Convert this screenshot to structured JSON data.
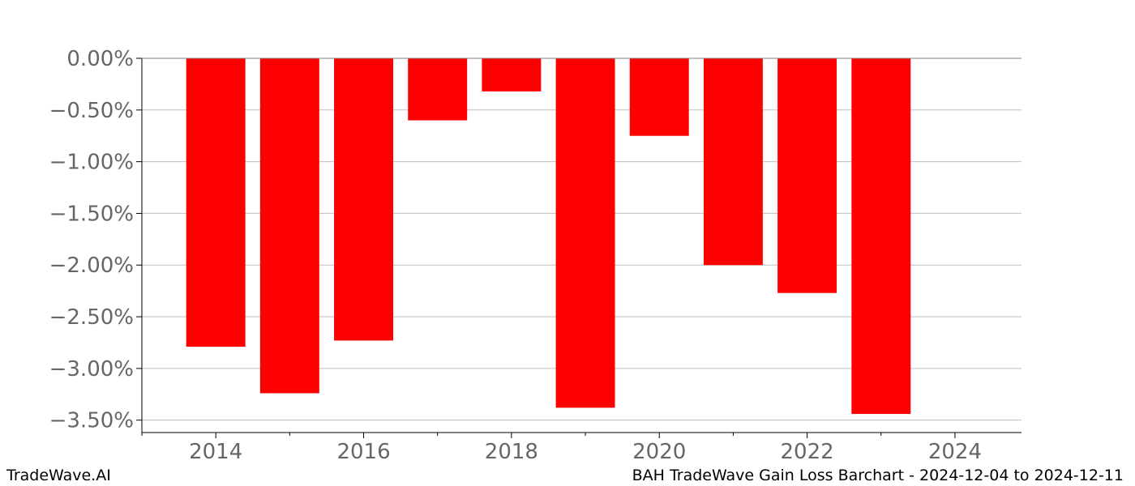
{
  "footer": {
    "brand": "TradeWave.AI",
    "caption": "BAH TradeWave Gain Loss Barchart - 2024-12-04 to 2024-12-11"
  },
  "colors": {
    "bar": "#ff0000",
    "grid": "#bfbfbf",
    "axis": "#000000",
    "tick_text": "#666666"
  },
  "chart_data": {
    "type": "bar",
    "x": [
      2014,
      2015,
      2016,
      2017,
      2018,
      2019,
      2020,
      2021,
      2022,
      2023
    ],
    "values": [
      -2.79,
      -3.24,
      -2.73,
      -0.6,
      -0.32,
      -3.38,
      -0.75,
      -2.0,
      -2.27,
      -3.44
    ],
    "xlim": [
      2013.0,
      2024.9
    ],
    "ylim": [
      -3.62,
      0.0
    ],
    "xticks": [
      2014,
      2016,
      2018,
      2020,
      2022,
      2024
    ],
    "xtick_labels": [
      "2014",
      "2016",
      "2018",
      "2020",
      "2022",
      "2024"
    ],
    "yticks": [
      0.0,
      -0.5,
      -1.0,
      -1.5,
      -2.0,
      -2.5,
      -3.0,
      -3.5
    ],
    "ytick_labels": [
      "0.00%",
      "−0.50%",
      "−1.00%",
      "−1.50%",
      "−2.00%",
      "−2.50%",
      "−3.00%",
      "−3.50%"
    ],
    "grid": true,
    "unit": "%"
  }
}
